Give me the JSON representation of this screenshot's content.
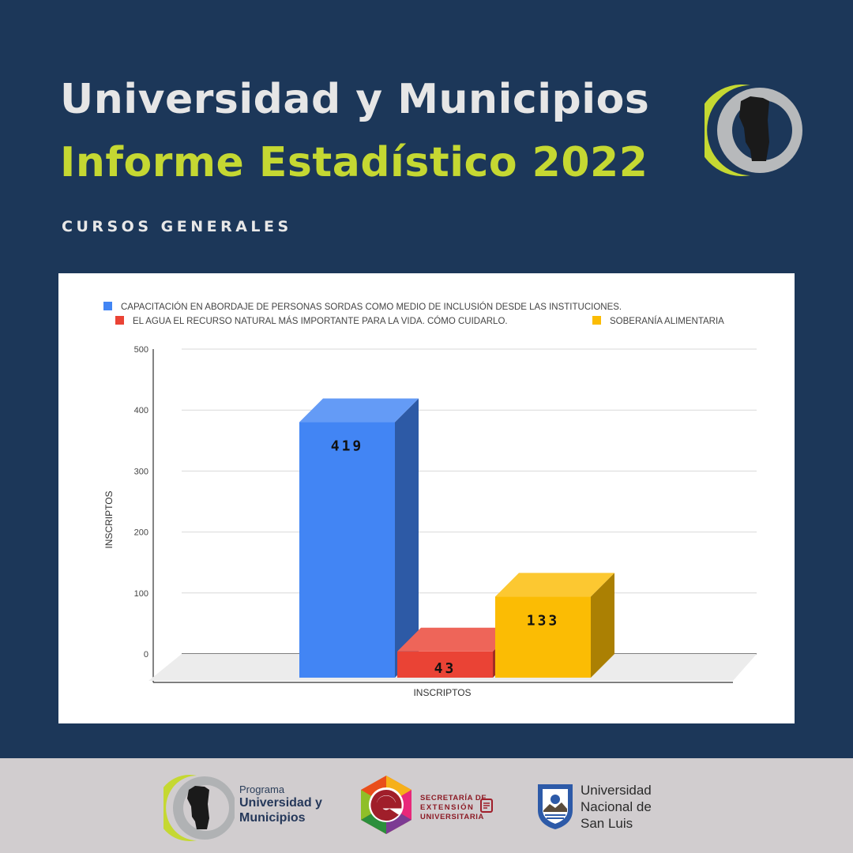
{
  "header": {
    "title": "Universidad y Municipios",
    "subtitle": "Informe Estadístico 2022",
    "section": "CURSOS GENERALES"
  },
  "colors": {
    "background": "#1c3759",
    "accent_green": "#c5d832",
    "footer_bg": "#d1cdcf"
  },
  "chart_data": {
    "type": "bar",
    "style": "3d",
    "title": "",
    "xlabel": "INSCRIPTOS",
    "ylabel": "INSCRIPTOS",
    "ylim": [
      0,
      500
    ],
    "yticks": [
      0,
      100,
      200,
      300,
      400,
      500
    ],
    "grid": true,
    "legend_position": "top",
    "categories": [
      "INSCRIPTOS"
    ],
    "series": [
      {
        "name": "CAPACITACIÓN EN ABORDAJE DE PERSONAS SORDAS COMO MEDIO DE INCLUSIÓN DESDE LAS INSTITUCIONES.",
        "values": [
          419
        ],
        "color": "#4285f4",
        "label": "419"
      },
      {
        "name": "EL AGUA EL RECURSO NATURAL MÁS IMPORTANTE PARA LA VIDA. CÓMO CUIDARLO.",
        "values": [
          43
        ],
        "color": "#ea4335",
        "label": "43"
      },
      {
        "name": "SOBERANÍA ALIMENTARIA",
        "values": [
          133
        ],
        "color": "#fbbc04",
        "label": "133"
      }
    ]
  },
  "footer": {
    "program": {
      "line0": "Programa",
      "line1": "Universidad y",
      "line2": "Municipios",
      "icon": "province-map-ring-logo"
    },
    "secretaria": {
      "line1": "SECRETARÍA DE",
      "line2": "EXTENSIÓN",
      "line3": "UNIVERSITARIA",
      "icon": "extension-e-hexagon-logo"
    },
    "university": {
      "line1": "Universidad",
      "line2": "Nacional de",
      "line3": "San Luis",
      "icon": "unsl-shield-logo"
    }
  }
}
